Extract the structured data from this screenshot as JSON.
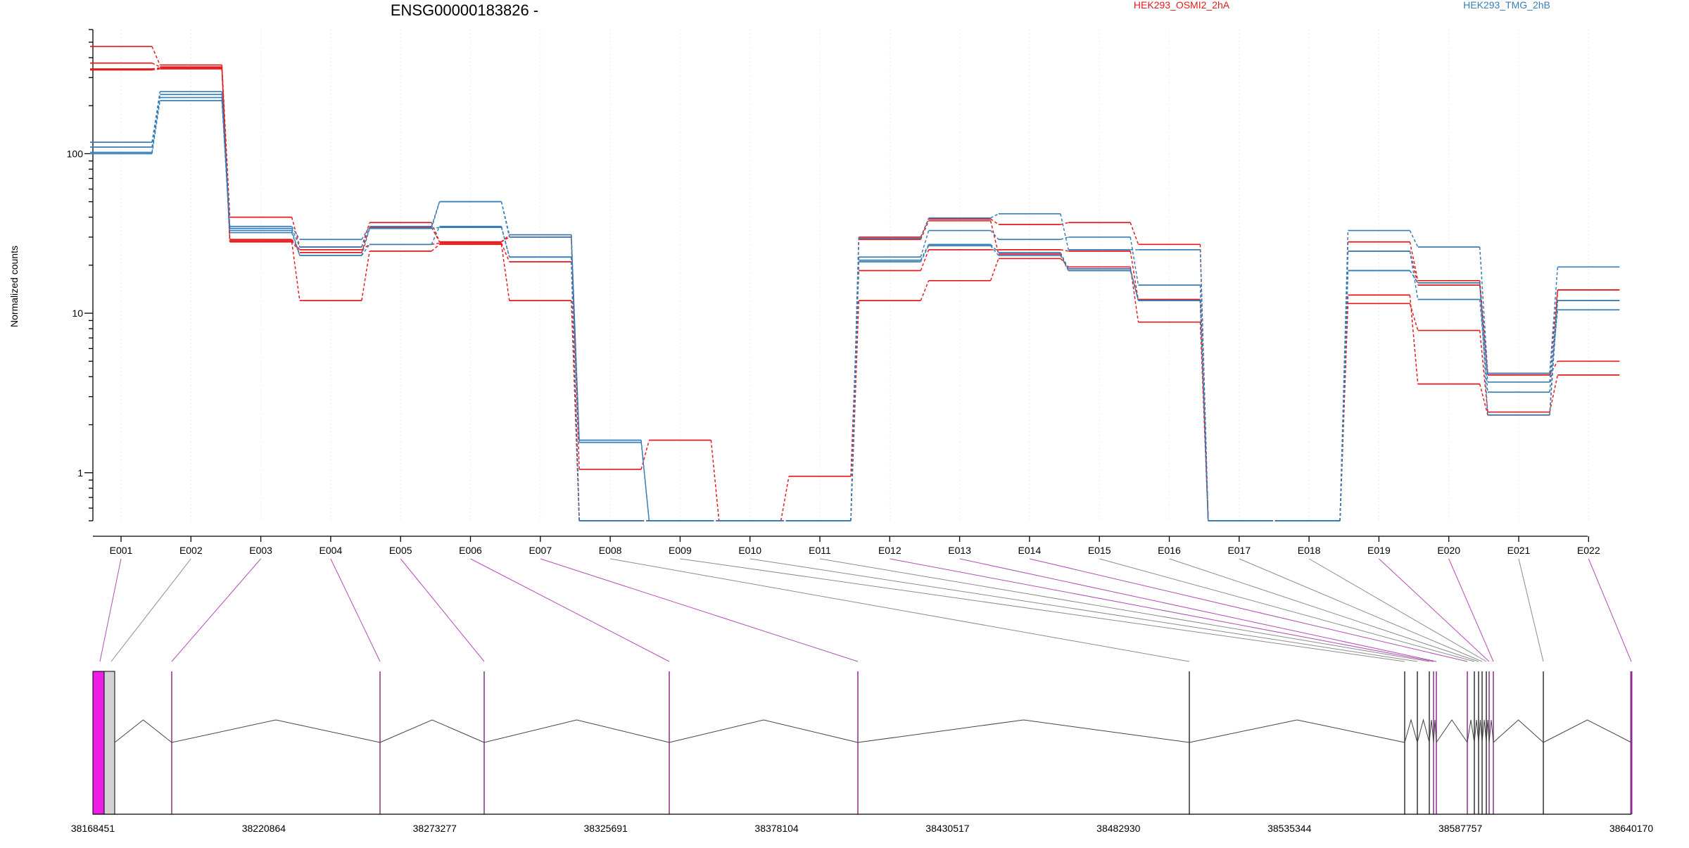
{
  "chart_data": {
    "type": "line",
    "title": "ENSG00000183826 -",
    "xlabel": "",
    "ylabel": "Normalized counts",
    "yscale": "log",
    "ylim": [
      0.5,
      600
    ],
    "yticks": [
      1,
      10,
      100
    ],
    "ytick_labels": [
      "1",
      "10",
      "100"
    ],
    "grid": "vertical dotted",
    "categories": [
      "E001",
      "E002",
      "E003",
      "E004",
      "E005",
      "E006",
      "E007",
      "E008",
      "E009",
      "E010",
      "E011",
      "E012",
      "E013",
      "E014",
      "E015",
      "E016",
      "E017",
      "E018",
      "E019",
      "E020",
      "E021",
      "E022"
    ],
    "legend": [
      {
        "name": "HEK293_OSMI2_2hA",
        "color": "#e41a1c",
        "placement": "top-center"
      },
      {
        "name": "HEK293_TMG_2hB",
        "color": "#377eb8",
        "placement": "top-right"
      }
    ],
    "series": [
      {
        "color": "#e41a1c",
        "values": [
          470,
          360,
          40,
          26,
          37,
          28,
          31,
          1.05,
          1.6,
          0.5,
          0.5,
          30,
          39,
          36,
          37,
          27,
          0.5,
          0.5,
          28,
          16,
          4.2,
          14
        ]
      },
      {
        "color": "#e41a1c",
        "values": [
          370,
          350,
          29,
          25,
          27,
          27.5,
          21,
          0.5,
          0.5,
          0.5,
          0.95,
          18.5,
          25,
          25,
          24.5,
          12,
          0.5,
          0.5,
          24.5,
          15,
          4.1,
          5
        ]
      },
      {
        "color": "#e41a1c",
        "values": [
          340,
          345,
          28,
          12,
          24.5,
          27,
          12,
          0.5,
          0.5,
          0.5,
          0.5,
          12,
          16,
          22,
          19.5,
          8.8,
          0.5,
          0.5,
          11.5,
          7.8,
          2.4,
          4.1
        ]
      },
      {
        "color": "#e41a1c",
        "values": [
          335,
          340,
          28.5,
          24,
          34.5,
          28,
          30,
          0.5,
          0.5,
          0.5,
          0.5,
          29,
          38,
          23.5,
          18.5,
          12.2,
          0.5,
          0.5,
          13,
          3.6,
          2.3,
          14
        ]
      },
      {
        "color": "#377eb8",
        "values": [
          118,
          245,
          35,
          29,
          35,
          50,
          31,
          1.6,
          0.5,
          0.5,
          0.5,
          29.5,
          39.5,
          42,
          25,
          25,
          0.5,
          0.5,
          33,
          26,
          4.2,
          19.5
        ]
      },
      {
        "color": "#377eb8",
        "values": [
          110,
          235,
          34,
          26,
          34,
          50,
          30,
          1.55,
          0.5,
          0.5,
          0.5,
          22.5,
          33,
          29,
          30,
          15,
          0.5,
          0.5,
          24.5,
          12.2,
          3.2,
          10.5
        ]
      },
      {
        "color": "#377eb8",
        "values": [
          102,
          225,
          33,
          23,
          27,
          35,
          22.5,
          0.5,
          0.5,
          0.5,
          0.5,
          21.5,
          27,
          24,
          19,
          12,
          0.5,
          0.5,
          18.5,
          15.5,
          2.3,
          12
        ]
      },
      {
        "color": "#377eb8",
        "values": [
          100,
          215,
          32,
          23,
          34,
          34.5,
          22.5,
          0.5,
          0.5,
          0.5,
          0.5,
          21,
          26.5,
          23,
          18.5,
          12,
          0.5,
          0.5,
          18.5,
          15.5,
          3.7,
          12
        ]
      }
    ]
  },
  "gene_model": {
    "coordinate_labels": [
      "38168451",
      "38220864",
      "38273277",
      "38325691",
      "38378104",
      "38430517",
      "38482930",
      "38535344",
      "38587757",
      "38640170"
    ],
    "highlight_color": "#ee1de6",
    "connector_colors": {
      "significant": "#b44db7",
      "other": "#8c8c8c"
    },
    "connector_significant": [
      true,
      false,
      true,
      true,
      true,
      true,
      true,
      false,
      false,
      false,
      false,
      true,
      true,
      true,
      false,
      false,
      false,
      false,
      true,
      true,
      false,
      true
    ]
  }
}
